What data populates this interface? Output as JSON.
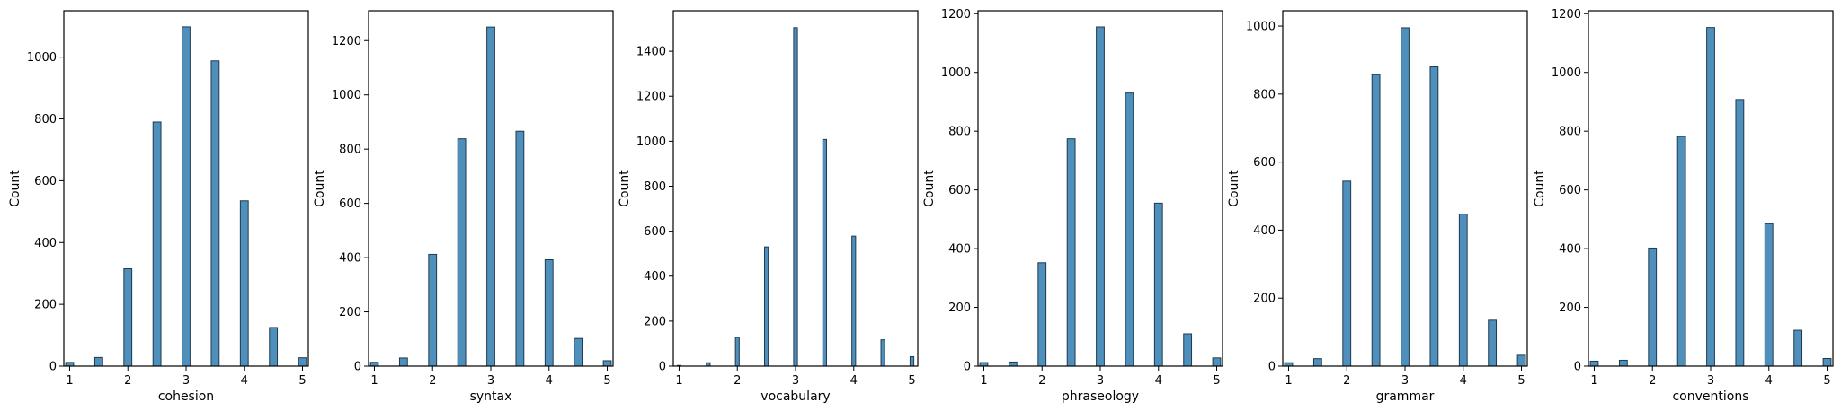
{
  "colors": {
    "bar_fill": "#4f8fbc",
    "bar_edge": "#1f3a4f",
    "axes": "#000000"
  },
  "chart_data": [
    {
      "type": "bar",
      "xlabel": "cohesion",
      "ylabel": "Count",
      "xlim": [
        0.9,
        5.1
      ],
      "ylim": [
        0,
        1150
      ],
      "xticks": [
        1,
        2,
        3,
        4,
        5
      ],
      "yticks": [
        0,
        200,
        400,
        600,
        800,
        1000
      ],
      "bar_width": 0.136,
      "x": [
        1.0,
        1.5,
        2.0,
        2.5,
        3.0,
        3.5,
        4.0,
        4.5,
        5.0
      ],
      "values": [
        12,
        28,
        315,
        790,
        1098,
        988,
        535,
        125,
        27
      ]
    },
    {
      "type": "bar",
      "xlabel": "syntax",
      "ylabel": "Count",
      "xlim": [
        0.9,
        5.1
      ],
      "ylim": [
        0,
        1310
      ],
      "xticks": [
        1,
        2,
        3,
        4,
        5
      ],
      "yticks": [
        0,
        200,
        400,
        600,
        800,
        1000,
        1200
      ],
      "bar_width": 0.136,
      "x": [
        1.0,
        1.5,
        2.0,
        2.5,
        3.0,
        3.5,
        4.0,
        4.5,
        5.0
      ],
      "values": [
        14,
        30,
        412,
        838,
        1250,
        866,
        392,
        102,
        20
      ]
    },
    {
      "type": "bar",
      "xlabel": "vocabulary",
      "ylabel": "Count",
      "xlim": [
        0.9,
        5.1
      ],
      "ylim": [
        0,
        1580
      ],
      "xticks": [
        1,
        2,
        3,
        4,
        5
      ],
      "yticks": [
        0,
        200,
        400,
        600,
        800,
        1000,
        1200,
        1400
      ],
      "bar_width": 0.065,
      "x": [
        1.0,
        1.5,
        2.0,
        2.5,
        3.0,
        3.5,
        4.0,
        4.5,
        5.0
      ],
      "values": [
        3,
        15,
        128,
        530,
        1505,
        1008,
        578,
        117,
        42
      ]
    },
    {
      "type": "bar",
      "xlabel": "phraseology",
      "ylabel": "Count",
      "xlim": [
        0.9,
        5.1
      ],
      "ylim": [
        0,
        1210
      ],
      "xticks": [
        1,
        2,
        3,
        4,
        5
      ],
      "yticks": [
        0,
        200,
        400,
        600,
        800,
        1000,
        1200
      ],
      "bar_width": 0.136,
      "x": [
        1.0,
        1.5,
        2.0,
        2.5,
        3.0,
        3.5,
        4.0,
        4.5,
        5.0
      ],
      "values": [
        12,
        14,
        352,
        774,
        1155,
        930,
        555,
        110,
        28
      ]
    },
    {
      "type": "bar",
      "xlabel": "grammar",
      "ylabel": "Count",
      "xlim": [
        0.9,
        5.1
      ],
      "ylim": [
        0,
        1045
      ],
      "xticks": [
        1,
        2,
        3,
        4,
        5
      ],
      "yticks": [
        0,
        200,
        400,
        600,
        800,
        1000
      ],
      "bar_width": 0.136,
      "x": [
        1.0,
        1.5,
        2.0,
        2.5,
        3.0,
        3.5,
        4.0,
        4.5,
        5.0
      ],
      "values": [
        10,
        22,
        544,
        857,
        995,
        880,
        447,
        135,
        32
      ]
    },
    {
      "type": "bar",
      "xlabel": "conventions",
      "ylabel": "Count",
      "xlim": [
        0.9,
        5.1
      ],
      "ylim": [
        0,
        1210
      ],
      "xticks": [
        1,
        2,
        3,
        4,
        5
      ],
      "yticks": [
        0,
        200,
        400,
        600,
        800,
        1000,
        1200
      ],
      "bar_width": 0.136,
      "x": [
        1.0,
        1.5,
        2.0,
        2.5,
        3.0,
        3.5,
        4.0,
        4.5,
        5.0
      ],
      "values": [
        17,
        20,
        402,
        782,
        1153,
        908,
        485,
        122,
        26
      ]
    }
  ]
}
